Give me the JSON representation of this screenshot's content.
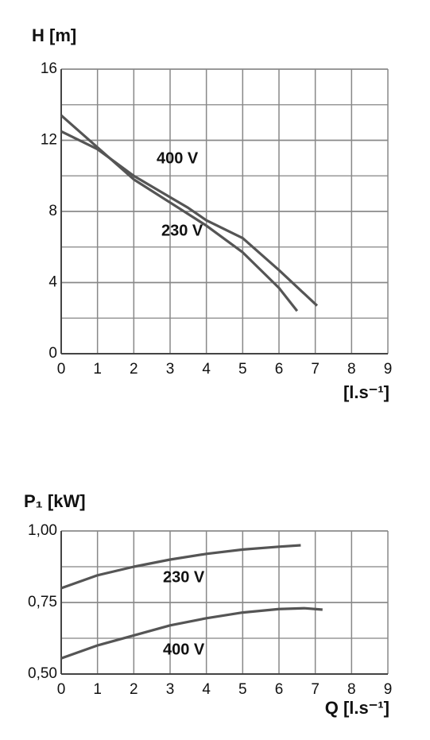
{
  "chart_data": [
    {
      "type": "line",
      "title": "H [m]",
      "x_label": "[l.s⁻¹]",
      "xlim": [
        0,
        9
      ],
      "xticks": [
        0,
        1,
        2,
        3,
        4,
        5,
        6,
        7,
        8,
        9
      ],
      "ylim": [
        0,
        16
      ],
      "yticks": [
        0,
        4,
        8,
        12,
        16
      ],
      "y_minor_grid": 2,
      "grid": true,
      "series": [
        {
          "name": "400 V",
          "color": "#555555",
          "x": [
            0,
            1,
            2,
            3,
            3.5,
            4,
            5,
            6,
            7.05
          ],
          "values": [
            12.5,
            11.5,
            10.0,
            8.8,
            8.2,
            7.5,
            6.5,
            4.7,
            2.7
          ]
        },
        {
          "name": "230 V",
          "color": "#555555",
          "x": [
            0,
            1,
            2,
            3,
            4,
            5,
            6,
            6.5
          ],
          "values": [
            13.4,
            11.6,
            9.8,
            8.5,
            7.2,
            5.7,
            3.7,
            2.4
          ]
        }
      ]
    },
    {
      "type": "line",
      "title": "P₁ [kW]",
      "x_label": "Q [l.s⁻¹]",
      "xlim": [
        0,
        9
      ],
      "xticks": [
        0,
        1,
        2,
        3,
        4,
        5,
        6,
        7,
        8,
        9
      ],
      "ylim": [
        0.5,
        1.0
      ],
      "yticks": [
        {
          "value": 0.5,
          "label": "0,50"
        },
        {
          "value": 0.75,
          "label": "0,75"
        },
        {
          "value": 1.0,
          "label": "1,00"
        }
      ],
      "y_minor_grid": 0.125,
      "grid": true,
      "series": [
        {
          "name": "230 V",
          "color": "#555555",
          "x": [
            0,
            1,
            2,
            3,
            4,
            5,
            6,
            6.6
          ],
          "values": [
            0.8,
            0.845,
            0.875,
            0.9,
            0.92,
            0.935,
            0.945,
            0.95
          ]
        },
        {
          "name": "400 V",
          "color": "#555555",
          "x": [
            0,
            1,
            2,
            3,
            4,
            5,
            6,
            6.7,
            7.2
          ],
          "values": [
            0.555,
            0.6,
            0.635,
            0.67,
            0.695,
            0.715,
            0.727,
            0.73,
            0.725
          ]
        }
      ]
    }
  ]
}
